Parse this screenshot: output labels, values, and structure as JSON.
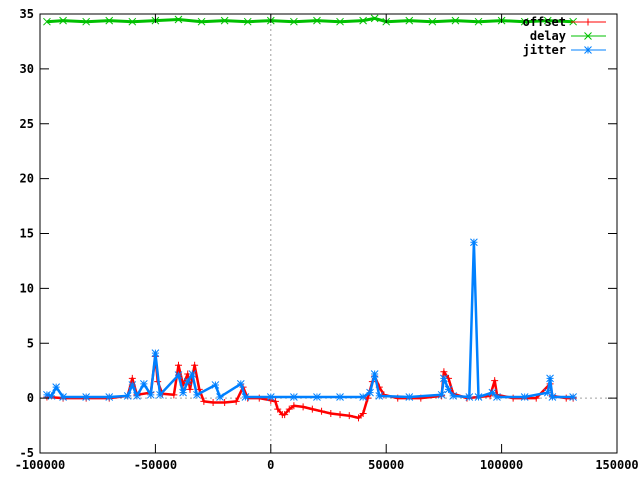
{
  "chart_data": {
    "type": "line",
    "xlim": [
      -100000,
      150000
    ],
    "ylim": [
      -5,
      35
    ],
    "x_ticks": [
      -100000,
      -50000,
      0,
      50000,
      100000,
      150000
    ],
    "y_ticks": [
      -5,
      0,
      5,
      10,
      15,
      20,
      25,
      30,
      35
    ],
    "grid": false,
    "zero_axes_dashed": true,
    "legend_position": "top-right",
    "series": [
      {
        "name": "offset",
        "color": "#ff0000",
        "marker": "plus",
        "points": [
          [
            -97000,
            0.1
          ],
          [
            -90000,
            0.0
          ],
          [
            -80000,
            0.0
          ],
          [
            -70000,
            0.0
          ],
          [
            -62000,
            0.2
          ],
          [
            -60000,
            1.8
          ],
          [
            -58000,
            0.3
          ],
          [
            -52000,
            0.5
          ],
          [
            -50000,
            3.8
          ],
          [
            -49000,
            1.5
          ],
          [
            -47000,
            0.4
          ],
          [
            -42000,
            0.3
          ],
          [
            -40000,
            3.0
          ],
          [
            -38000,
            1.2
          ],
          [
            -36000,
            2.2
          ],
          [
            -35000,
            0.8
          ],
          [
            -33000,
            3.0
          ],
          [
            -31000,
            0.8
          ],
          [
            -29000,
            -0.3
          ],
          [
            -25000,
            -0.4
          ],
          [
            -20000,
            -0.4
          ],
          [
            -15000,
            -0.3
          ],
          [
            -12000,
            1.0
          ],
          [
            -10000,
            0.0
          ],
          [
            -5000,
            0.0
          ],
          [
            0,
            -0.2
          ],
          [
            2000,
            -0.3
          ],
          [
            3000,
            -1.0
          ],
          [
            5000,
            -1.5
          ],
          [
            6000,
            -1.5
          ],
          [
            8000,
            -1.0
          ],
          [
            10000,
            -0.7
          ],
          [
            14000,
            -0.8
          ],
          [
            18000,
            -1.0
          ],
          [
            22000,
            -1.2
          ],
          [
            26000,
            -1.4
          ],
          [
            30000,
            -1.5
          ],
          [
            34000,
            -1.6
          ],
          [
            38000,
            -1.8
          ],
          [
            40000,
            -1.4
          ],
          [
            42000,
            0.0
          ],
          [
            44000,
            1.5
          ],
          [
            45000,
            2.0
          ],
          [
            47000,
            1.0
          ],
          [
            49000,
            0.3
          ],
          [
            55000,
            0.0
          ],
          [
            65000,
            0.0
          ],
          [
            74000,
            0.2
          ],
          [
            75000,
            2.4
          ],
          [
            77000,
            1.8
          ],
          [
            79000,
            0.4
          ],
          [
            85000,
            0.0
          ],
          [
            95000,
            0.2
          ],
          [
            97000,
            1.6
          ],
          [
            98000,
            0.3
          ],
          [
            105000,
            0.0
          ],
          [
            115000,
            0.0
          ],
          [
            121000,
            1.3
          ],
          [
            122000,
            0.2
          ],
          [
            128000,
            0.0
          ],
          [
            131000,
            0.0
          ]
        ]
      },
      {
        "name": "delay",
        "color": "#00c000",
        "marker": "cross",
        "points": [
          [
            -97000,
            34.3
          ],
          [
            -90000,
            34.4
          ],
          [
            -80000,
            34.3
          ],
          [
            -70000,
            34.4
          ],
          [
            -60000,
            34.3
          ],
          [
            -50000,
            34.4
          ],
          [
            -40000,
            34.5
          ],
          [
            -30000,
            34.3
          ],
          [
            -20000,
            34.4
          ],
          [
            -10000,
            34.3
          ],
          [
            0,
            34.4
          ],
          [
            10000,
            34.3
          ],
          [
            20000,
            34.4
          ],
          [
            30000,
            34.3
          ],
          [
            40000,
            34.4
          ],
          [
            45000,
            34.6
          ],
          [
            50000,
            34.3
          ],
          [
            60000,
            34.4
          ],
          [
            70000,
            34.3
          ],
          [
            80000,
            34.4
          ],
          [
            90000,
            34.3
          ],
          [
            100000,
            34.4
          ],
          [
            110000,
            34.3
          ],
          [
            120000,
            34.4
          ],
          [
            131000,
            34.3
          ]
        ]
      },
      {
        "name": "jitter",
        "color": "#0080ff",
        "marker": "star",
        "points": [
          [
            -97000,
            0.3
          ],
          [
            -95000,
            0.2
          ],
          [
            -93000,
            1.0
          ],
          [
            -90000,
            0.1
          ],
          [
            -80000,
            0.1
          ],
          [
            -70000,
            0.1
          ],
          [
            -62000,
            0.2
          ],
          [
            -60000,
            1.2
          ],
          [
            -58000,
            0.2
          ],
          [
            -55000,
            1.3
          ],
          [
            -52000,
            0.3
          ],
          [
            -50000,
            4.1
          ],
          [
            -48000,
            0.3
          ],
          [
            -40000,
            2.1
          ],
          [
            -38000,
            0.5
          ],
          [
            -36000,
            1.5
          ],
          [
            -34000,
            2.2
          ],
          [
            -32000,
            0.3
          ],
          [
            -24000,
            1.2
          ],
          [
            -22000,
            0.1
          ],
          [
            -13000,
            1.3
          ],
          [
            -11000,
            0.1
          ],
          [
            0,
            0.1
          ],
          [
            10000,
            0.1
          ],
          [
            20000,
            0.1
          ],
          [
            30000,
            0.1
          ],
          [
            40000,
            0.1
          ],
          [
            43000,
            0.5
          ],
          [
            45000,
            2.2
          ],
          [
            47000,
            0.2
          ],
          [
            60000,
            0.1
          ],
          [
            74000,
            0.3
          ],
          [
            75000,
            1.8
          ],
          [
            77000,
            0.8
          ],
          [
            79000,
            0.2
          ],
          [
            86000,
            0.1
          ],
          [
            88000,
            14.2
          ],
          [
            90000,
            0.1
          ],
          [
            96000,
            0.5
          ],
          [
            98000,
            0.1
          ],
          [
            110000,
            0.1
          ],
          [
            120000,
            0.5
          ],
          [
            121000,
            1.8
          ],
          [
            122000,
            0.1
          ],
          [
            131000,
            0.1
          ]
        ]
      }
    ]
  }
}
